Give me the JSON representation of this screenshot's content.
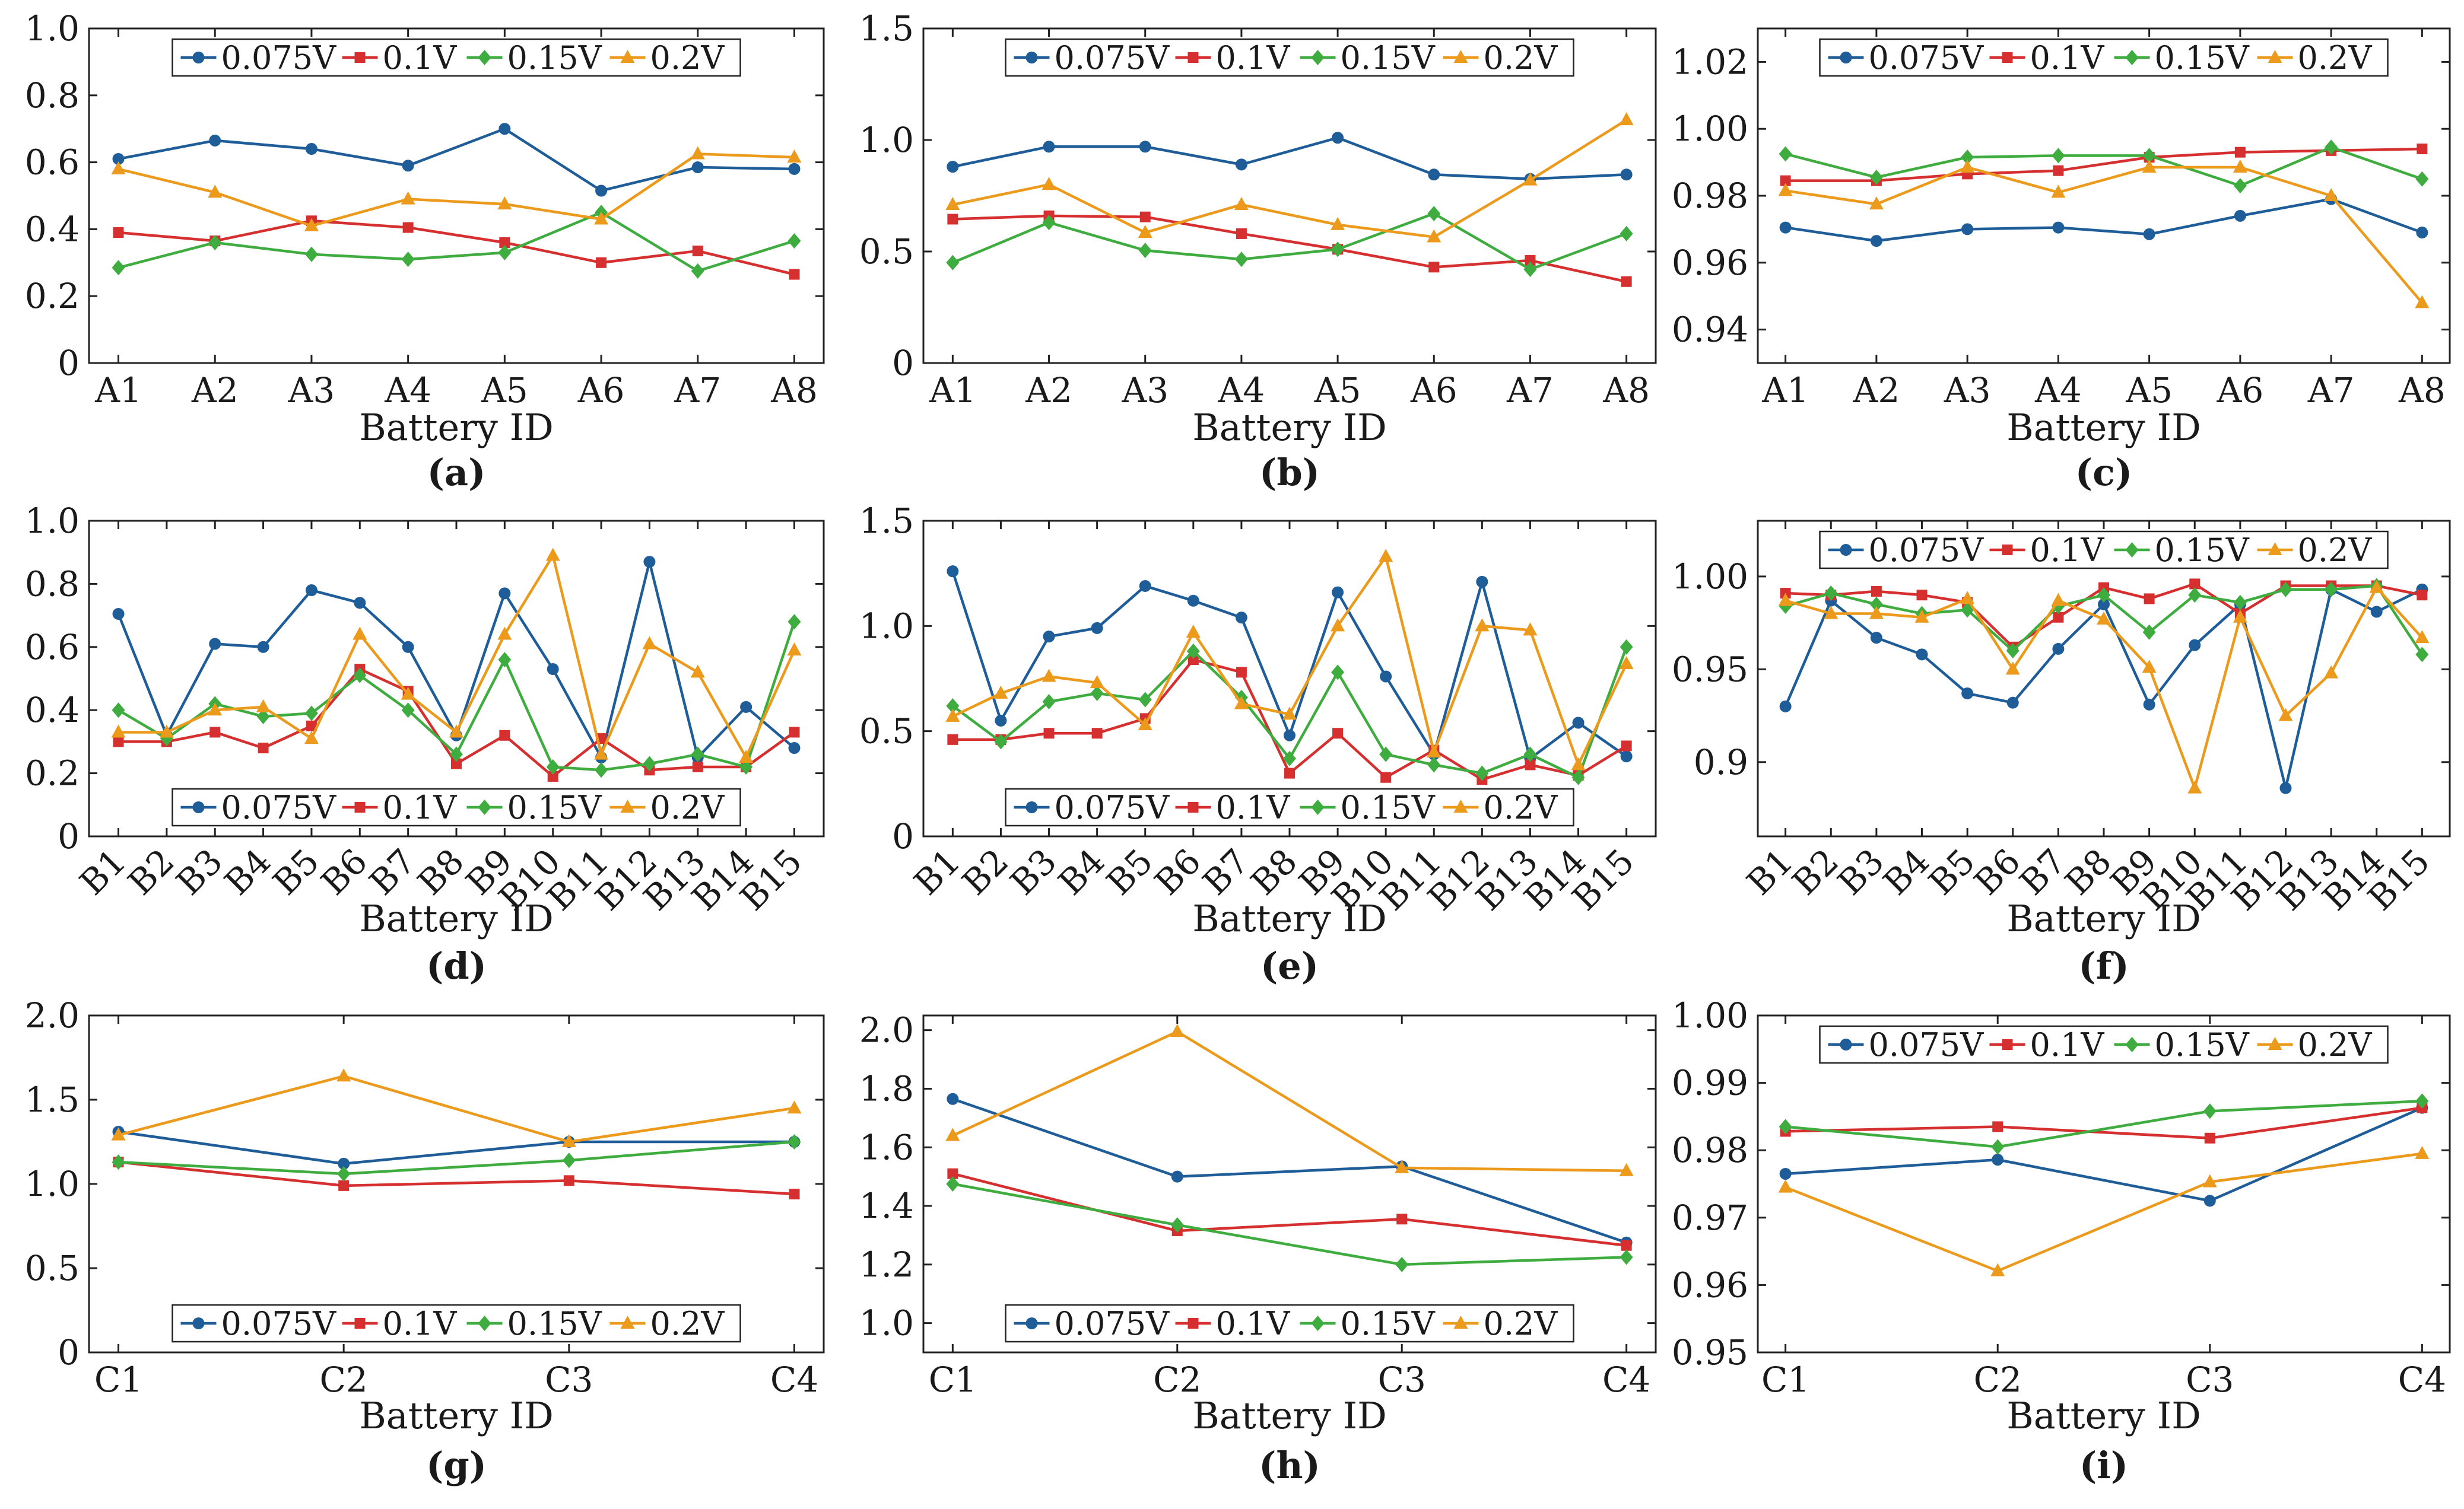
{
  "colors": {
    "0.075V": "#1f5d99",
    "0.1V": "#d62f2f",
    "0.15V": "#3fac3f",
    "0.2V": "#eb9a1c"
  },
  "chart_data": [
    {
      "id": "a",
      "type": "line",
      "panel_label": "(a)",
      "xlabel": "Battery ID",
      "categories": [
        "A1",
        "A2",
        "A3",
        "A4",
        "A5",
        "A6",
        "A7",
        "A8"
      ],
      "ylim": [
        0,
        1.0
      ],
      "yticks": [
        "0",
        "0.2",
        "0.4",
        "0.6",
        "0.8",
        "1.0"
      ],
      "legend": "top",
      "series": [
        {
          "name": "0.075V",
          "values": [
            0.61,
            0.665,
            0.64,
            0.59,
            0.7,
            0.515,
            0.585,
            0.58
          ]
        },
        {
          "name": "0.1V",
          "values": [
            0.39,
            0.365,
            0.425,
            0.405,
            0.36,
            0.3,
            0.335,
            0.265
          ]
        },
        {
          "name": "0.15V",
          "values": [
            0.285,
            0.36,
            0.325,
            0.31,
            0.33,
            0.45,
            0.275,
            0.365
          ]
        },
        {
          "name": "0.2V",
          "values": [
            0.58,
            0.51,
            0.41,
            0.49,
            0.475,
            0.43,
            0.625,
            0.615
          ]
        }
      ]
    },
    {
      "id": "b",
      "type": "line",
      "panel_label": "(b)",
      "xlabel": "Battery ID",
      "categories": [
        "A1",
        "A2",
        "A3",
        "A4",
        "A5",
        "A6",
        "A7",
        "A8"
      ],
      "ylim": [
        0,
        1.5
      ],
      "yticks": [
        "0",
        "0.5",
        "1.0",
        "1.5"
      ],
      "legend": "top",
      "series": [
        {
          "name": "0.075V",
          "values": [
            0.88,
            0.97,
            0.97,
            0.89,
            1.01,
            0.845,
            0.825,
            0.845
          ]
        },
        {
          "name": "0.1V",
          "values": [
            0.645,
            0.66,
            0.655,
            0.58,
            0.51,
            0.43,
            0.46,
            0.365
          ]
        },
        {
          "name": "0.15V",
          "values": [
            0.45,
            0.63,
            0.505,
            0.465,
            0.51,
            0.67,
            0.42,
            0.58
          ]
        },
        {
          "name": "0.2V",
          "values": [
            0.71,
            0.8,
            0.585,
            0.71,
            0.62,
            0.565,
            0.82,
            1.09
          ]
        }
      ]
    },
    {
      "id": "c",
      "type": "line",
      "panel_label": "(c)",
      "xlabel": "Battery ID",
      "categories": [
        "A1",
        "A2",
        "A3",
        "A4",
        "A5",
        "A6",
        "A7",
        "A8"
      ],
      "ylim": [
        0.93,
        1.03
      ],
      "yticks": [
        "0.94",
        "0.96",
        "0.98",
        "1.00",
        "1.02"
      ],
      "legend": "top",
      "series": [
        {
          "name": "0.075V",
          "values": [
            0.9705,
            0.9665,
            0.97,
            0.9705,
            0.9685,
            0.974,
            0.979,
            0.969
          ]
        },
        {
          "name": "0.1V",
          "values": [
            0.9845,
            0.9845,
            0.9865,
            0.9875,
            0.9915,
            0.993,
            0.9935,
            0.994
          ]
        },
        {
          "name": "0.15V",
          "values": [
            0.9925,
            0.9855,
            0.9915,
            0.992,
            0.992,
            0.983,
            0.9945,
            0.985
          ]
        },
        {
          "name": "0.2V",
          "values": [
            0.9815,
            0.9775,
            0.9885,
            0.981,
            0.9885,
            0.9885,
            0.98,
            0.948
          ]
        }
      ]
    },
    {
      "id": "d",
      "type": "line",
      "panel_label": "(d)",
      "xlabel": "Battery ID",
      "categories": [
        "B1",
        "B2",
        "B3",
        "B4",
        "B5",
        "B6",
        "B7",
        "B8",
        "B9",
        "B10",
        "B11",
        "B12",
        "B13",
        "B14",
        "B15"
      ],
      "ylim": [
        0,
        1.0
      ],
      "yticks": [
        "0",
        "0.2",
        "0.4",
        "0.6",
        "0.8",
        "1.0"
      ],
      "legend": "bottom",
      "series": [
        {
          "name": "0.075V",
          "values": [
            0.705,
            0.32,
            0.61,
            0.6,
            0.78,
            0.74,
            0.6,
            0.32,
            0.77,
            0.53,
            0.25,
            0.87,
            0.25,
            0.41,
            0.28
          ]
        },
        {
          "name": "0.1V",
          "values": [
            0.3,
            0.3,
            0.33,
            0.28,
            0.35,
            0.53,
            0.46,
            0.23,
            0.32,
            0.19,
            0.31,
            0.21,
            0.22,
            0.22,
            0.33
          ]
        },
        {
          "name": "0.15V",
          "values": [
            0.4,
            0.31,
            0.42,
            0.38,
            0.39,
            0.51,
            0.4,
            0.26,
            0.56,
            0.22,
            0.21,
            0.23,
            0.26,
            0.22,
            0.68
          ]
        },
        {
          "name": "0.2V",
          "values": [
            0.33,
            0.33,
            0.4,
            0.41,
            0.31,
            0.64,
            0.45,
            0.33,
            0.64,
            0.89,
            0.26,
            0.61,
            0.52,
            0.25,
            0.59
          ]
        }
      ]
    },
    {
      "id": "e",
      "type": "line",
      "panel_label": "(e)",
      "xlabel": "Battery ID",
      "categories": [
        "B1",
        "B2",
        "B3",
        "B4",
        "B5",
        "B6",
        "B7",
        "B8",
        "B9",
        "B10",
        "B11",
        "B12",
        "B13",
        "B14",
        "B15"
      ],
      "ylim": [
        0,
        1.5
      ],
      "yticks": [
        "0",
        "0.5",
        "1.0",
        "1.5"
      ],
      "legend": "bottom",
      "series": [
        {
          "name": "0.075V",
          "values": [
            1.26,
            0.55,
            0.95,
            0.99,
            1.19,
            1.12,
            1.04,
            0.48,
            1.16,
            0.76,
            0.39,
            1.21,
            0.37,
            0.54,
            0.38
          ]
        },
        {
          "name": "0.1V",
          "values": [
            0.46,
            0.46,
            0.49,
            0.49,
            0.56,
            0.84,
            0.78,
            0.3,
            0.49,
            0.28,
            0.41,
            0.27,
            0.34,
            0.29,
            0.43
          ]
        },
        {
          "name": "0.15V",
          "values": [
            0.62,
            0.45,
            0.64,
            0.68,
            0.65,
            0.88,
            0.66,
            0.37,
            0.78,
            0.39,
            0.34,
            0.3,
            0.39,
            0.28,
            0.9
          ]
        },
        {
          "name": "0.2V",
          "values": [
            0.57,
            0.68,
            0.76,
            0.73,
            0.53,
            0.97,
            0.63,
            0.58,
            1.0,
            1.33,
            0.4,
            1.0,
            0.98,
            0.34,
            0.82
          ]
        }
      ]
    },
    {
      "id": "f",
      "type": "line",
      "panel_label": "(f)",
      "xlabel": "Battery ID",
      "categories": [
        "B1",
        "B2",
        "B3",
        "B4",
        "B5",
        "B6",
        "B7",
        "B8",
        "B9",
        "B10",
        "B11",
        "B12",
        "B13",
        "B14",
        "B15"
      ],
      "ylim": [
        0.86,
        1.03
      ],
      "yticks": [
        "0.9",
        "0.95",
        "1.00"
      ],
      "legend": "top",
      "series": [
        {
          "name": "0.075V",
          "values": [
            0.93,
            0.987,
            0.967,
            0.958,
            0.937,
            0.932,
            0.961,
            0.985,
            0.931,
            0.963,
            0.985,
            0.886,
            0.993,
            0.981,
            0.993
          ]
        },
        {
          "name": "0.1V",
          "values": [
            0.991,
            0.99,
            0.992,
            0.99,
            0.986,
            0.962,
            0.978,
            0.994,
            0.988,
            0.996,
            0.98,
            0.995,
            0.995,
            0.995,
            0.99
          ]
        },
        {
          "name": "0.15V",
          "values": [
            0.984,
            0.991,
            0.985,
            0.98,
            0.982,
            0.96,
            0.984,
            0.99,
            0.97,
            0.99,
            0.986,
            0.993,
            0.993,
            0.995,
            0.958
          ]
        },
        {
          "name": "0.2V",
          "values": [
            0.987,
            0.98,
            0.98,
            0.978,
            0.988,
            0.95,
            0.987,
            0.977,
            0.951,
            0.886,
            0.978,
            0.925,
            0.948,
            0.994,
            0.967
          ]
        }
      ]
    },
    {
      "id": "g",
      "type": "line",
      "panel_label": "(g)",
      "xlabel": "Battery ID",
      "categories": [
        "C1",
        "C2",
        "C3",
        "C4"
      ],
      "ylim": [
        0,
        2.0
      ],
      "yticks": [
        "0",
        "0.5",
        "1.0",
        "1.5",
        "2.0"
      ],
      "legend": "bottom",
      "series": [
        {
          "name": "0.075V",
          "values": [
            1.31,
            1.12,
            1.25,
            1.25
          ]
        },
        {
          "name": "0.1V",
          "values": [
            1.13,
            0.99,
            1.02,
            0.94
          ]
        },
        {
          "name": "0.15V",
          "values": [
            1.13,
            1.06,
            1.14,
            1.25
          ]
        },
        {
          "name": "0.2V",
          "values": [
            1.29,
            1.64,
            1.25,
            1.45
          ]
        }
      ]
    },
    {
      "id": "h",
      "type": "line",
      "panel_label": "(h)",
      "xlabel": "Battery ID",
      "categories": [
        "C1",
        "C2",
        "C3",
        "C4"
      ],
      "ylim": [
        0.9,
        2.05
      ],
      "yticks": [
        "1.0",
        "1.2",
        "1.4",
        "1.6",
        "1.8",
        "2.0"
      ],
      "legend": "bottom",
      "series": [
        {
          "name": "0.075V",
          "values": [
            1.765,
            1.5,
            1.535,
            1.275
          ]
        },
        {
          "name": "0.1V",
          "values": [
            1.51,
            1.315,
            1.355,
            1.265
          ]
        },
        {
          "name": "0.15V",
          "values": [
            1.475,
            1.335,
            1.2,
            1.225
          ]
        },
        {
          "name": "0.2V",
          "values": [
            1.64,
            1.995,
            1.53,
            1.52
          ]
        }
      ]
    },
    {
      "id": "i",
      "type": "line",
      "panel_label": "(i)",
      "xlabel": "Battery ID",
      "categories": [
        "C1",
        "C2",
        "C3",
        "C4"
      ],
      "ylim": [
        0.95,
        1.0
      ],
      "yticks": [
        "0.95",
        "0.96",
        "0.97",
        "0.98",
        "0.99",
        "1.00"
      ],
      "legend": "top",
      "series": [
        {
          "name": "0.075V",
          "values": [
            0.9765,
            0.9786,
            0.9725,
            0.9863
          ]
        },
        {
          "name": "0.1V",
          "values": [
            0.9828,
            0.9835,
            0.9818,
            0.9863
          ]
        },
        {
          "name": "0.15V",
          "values": [
            0.9835,
            0.9805,
            0.9858,
            0.9873
          ]
        },
        {
          "name": "0.2V",
          "values": [
            0.9745,
            0.9621,
            0.9753,
            0.9795
          ]
        }
      ]
    }
  ]
}
